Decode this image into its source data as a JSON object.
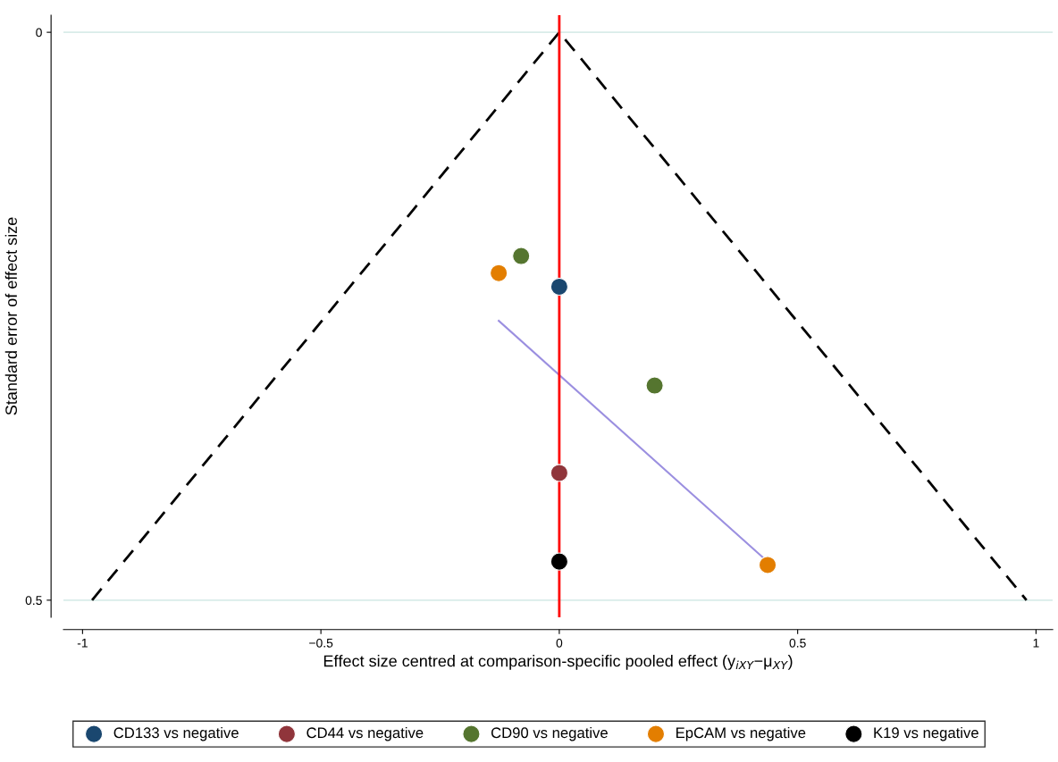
{
  "chart_data": {
    "type": "scatter",
    "xlabel": "Effect size centred at comparison-specific pooled effect (y$_{iXY}$−μ$_{XY}$)",
    "ylabel": "Standard error of effect size",
    "series": [
      {
        "name": "CD133 vs negative",
        "color": "#1a476f",
        "x": [
          0
        ],
        "values": [
          0.224
        ]
      },
      {
        "name": "CD44 vs negative",
        "color": "#90353b",
        "x": [
          0
        ],
        "values": [
          0.388
        ]
      },
      {
        "name": "CD90 vs negative",
        "color": "#55752f",
        "x": [
          -0.08,
          0.2
        ],
        "values": [
          0.197,
          0.311
        ]
      },
      {
        "name": "EpCAM vs negative",
        "color": "#e37e00",
        "x": [
          -0.127,
          0.437
        ],
        "values": [
          0.212,
          0.469
        ]
      },
      {
        "name": "K19 vs negative",
        "color": "#000000",
        "x": [
          0
        ],
        "values": [
          0.466
        ]
      },
      {
        "type": "line",
        "marker": "none",
        "color": "#000000",
        "line_style": "dashed",
        "x": [
          -0.98,
          0,
          0.98
        ],
        "values": [
          0.5,
          0,
          0.5
        ]
      },
      {
        "type": "line",
        "marker": "none",
        "color": "#9b8fe0",
        "line_style": "solid",
        "x": [
          -0.127,
          0.434
        ],
        "values": [
          0.254,
          0.465
        ]
      }
    ],
    "ref_lines": [
      {
        "axis": "x",
        "value": 0,
        "color": "#ff0000"
      }
    ],
    "xlim": [
      -1.04,
      1.035
    ],
    "xticks": [
      -1,
      {
        "value": -0.5,
        "label": "−0.5"
      },
      0,
      0.5,
      1
    ],
    "ylim": [
      0.515,
      -0.015
    ],
    "yticks": [
      0,
      0.5
    ],
    "grid": "y",
    "legend": "bottom",
    "marker": "circle"
  }
}
